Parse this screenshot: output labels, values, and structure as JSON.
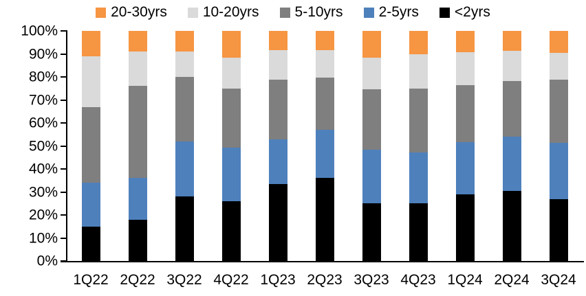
{
  "chart_data": {
    "type": "bar",
    "stacked": true,
    "percent_stack": true,
    "title": "",
    "xlabel": "",
    "ylabel": "",
    "grid": false,
    "legend_position": "top",
    "legend_order": [
      "20-30yrs",
      "10-20yrs",
      "5-10yrs",
      "2-5yrs",
      "<2yrs"
    ],
    "categories": [
      "1Q22",
      "2Q22",
      "3Q22",
      "4Q22",
      "1Q23",
      "2Q23",
      "3Q23",
      "4Q23",
      "1Q24",
      "2Q24",
      "3Q24"
    ],
    "series": [
      {
        "name": "<2yrs",
        "color": "#000000",
        "values": [
          15,
          18,
          28,
          26,
          33.5,
          36,
          25,
          25.2,
          29,
          30.5,
          27
        ]
      },
      {
        "name": "2-5yrs",
        "color": "#4E80BC",
        "values": [
          19,
          18,
          24,
          23.3,
          19.2,
          21,
          23.5,
          22.1,
          22.7,
          23.4,
          24.4
        ]
      },
      {
        "name": "5-10yrs",
        "color": "#7F7F7F",
        "values": [
          33,
          40,
          28,
          25.5,
          26.1,
          22.6,
          26.1,
          27.5,
          24.6,
          24.4,
          27.4
        ]
      },
      {
        "name": "10-20yrs",
        "color": "#DADADA",
        "values": [
          22,
          15,
          11,
          13.5,
          12.9,
          11.9,
          13.7,
          15,
          14.4,
          12.9,
          11.7
        ]
      },
      {
        "name": "20-30yrs",
        "color": "#F69542",
        "values": [
          11,
          9,
          9,
          11.7,
          8.3,
          8.5,
          11.7,
          10.2,
          9.3,
          8.8,
          9.5
        ]
      }
    ],
    "stack_order_note": "series listed bottom-to-top of each column",
    "ylim": [
      0,
      100
    ],
    "ytick_step": 10,
    "ytick_labels": [
      "0%",
      "10%",
      "20%",
      "30%",
      "40%",
      "50%",
      "60%",
      "70%",
      "80%",
      "90%",
      "100%"
    ]
  },
  "colors": {
    "axis": "#000000",
    "text": "#000000",
    "background": "#FFFFFF"
  }
}
